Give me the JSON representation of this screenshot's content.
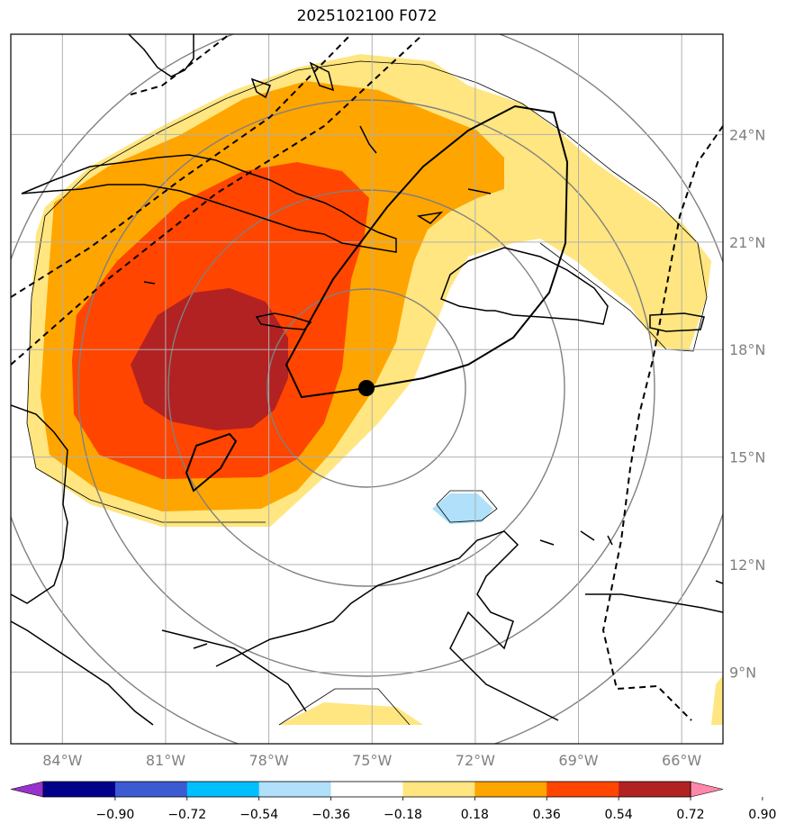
{
  "title": "2025102100 F072",
  "map": {
    "lon_range": [
      -85.5,
      -64.8
    ],
    "lat_range": [
      7.0,
      26.8
    ],
    "lon_ticks": [
      {
        "value": -84,
        "label": "84°W"
      },
      {
        "value": -81,
        "label": "81°W"
      },
      {
        "value": -78,
        "label": "78°W"
      },
      {
        "value": -75,
        "label": "75°W"
      },
      {
        "value": -72,
        "label": "72°W"
      },
      {
        "value": -69,
        "label": "69°W"
      },
      {
        "value": -66,
        "label": "66°W"
      }
    ],
    "lat_ticks": [
      {
        "value": 9,
        "label": "9°N"
      },
      {
        "value": 12,
        "label": "12°N"
      },
      {
        "value": 15,
        "label": "15°N"
      },
      {
        "value": 18,
        "label": "18°N"
      },
      {
        "value": 21,
        "label": "21°N"
      },
      {
        "value": 24,
        "label": "24°N"
      }
    ],
    "storm_center": {
      "lon": -75.0,
      "lat": 16.3
    },
    "range_ring_radii_deg": [
      2.7,
      5.4,
      8.1,
      10.8
    ]
  },
  "colorbar": {
    "levels": [
      -0.9,
      -0.72,
      -0.54,
      -0.36,
      -0.18,
      0.18,
      0.36,
      0.54,
      0.72,
      0.9
    ],
    "tick_labels": [
      "−0.90",
      "−0.72",
      "−0.54",
      "−0.36",
      "−0.18",
      "0.18",
      "0.36",
      "0.54",
      "0.72",
      "0.90"
    ],
    "colors": [
      "#9932cc",
      "#00008b",
      "#3c5ad2",
      "#00bfff",
      "#b0e0fa",
      "#ffffff",
      "#ffe680",
      "#ffa500",
      "#ff4500",
      "#b22222",
      "#ff88aa"
    ]
  }
}
